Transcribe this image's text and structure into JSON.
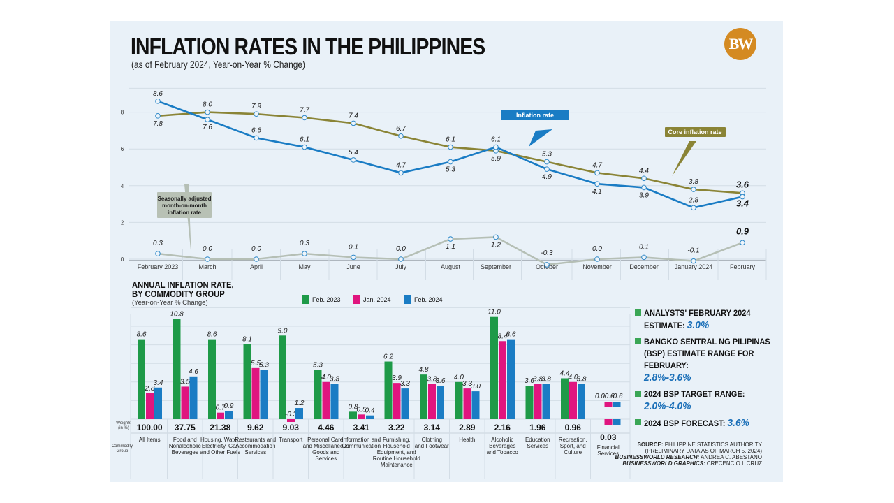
{
  "header": {
    "title": "INFLATION RATES IN THE PHILIPPINES",
    "subtitle": "(as of February 2024, Year-on-Year % Change)",
    "logo_text": "BW",
    "logo_color": "#d48a22"
  },
  "chart_data": [
    {
      "type": "line",
      "title": "INFLATION RATES IN THE PHILIPPINES",
      "subtitle": "(as of February 2024, Year-on-Year % Change)",
      "x": [
        "February 2023",
        "March",
        "April",
        "May",
        "June",
        "July",
        "August",
        "September",
        "October",
        "November",
        "December",
        "January 2024",
        "February"
      ],
      "yticks": [
        "0",
        "2",
        "4",
        "6",
        "8"
      ],
      "ylim": [
        0,
        9
      ],
      "grid": true,
      "series": [
        {
          "name": "Inflation rate",
          "color": "#1a7cc4",
          "values": [
            8.6,
            7.6,
            6.6,
            6.1,
            5.4,
            4.7,
            5.3,
            6.1,
            4.9,
            4.1,
            3.9,
            2.8,
            3.4
          ]
        },
        {
          "name": "Core inflation rate",
          "color": "#8a8436",
          "values": [
            7.8,
            8.0,
            7.9,
            7.7,
            7.4,
            6.7,
            6.1,
            5.9,
            5.3,
            4.7,
            4.4,
            3.8,
            3.6
          ]
        },
        {
          "name": "Seasonally adjusted month-on-month inflation rate",
          "color": "#b5bfb5",
          "values": [
            0.3,
            0.0,
            0.0,
            0.3,
            0.1,
            0.0,
            1.1,
            1.2,
            -0.3,
            0.0,
            0.1,
            -0.1,
            0.9
          ]
        }
      ],
      "callouts": {
        "inflation": "Inflation rate",
        "core": "Core inflation rate",
        "mom": [
          "Seasonally adjusted",
          "month-on-month",
          "inflation rate"
        ]
      }
    },
    {
      "type": "bar",
      "title": [
        "ANNUAL INFLATION RATE,",
        "BY COMMODITY GROUP"
      ],
      "subtitle": "(Year-on-Year % Change)",
      "legend": [
        "Feb. 2023",
        "Jan. 2024",
        "Feb. 2024"
      ],
      "legend_placement": "top",
      "colors": [
        "#1e9a48",
        "#e0157f",
        "#1a7cc4"
      ],
      "row_labels": {
        "weights": "Weights (in %)",
        "group": "Commodity Group"
      },
      "categories": [
        {
          "name": [
            "All Items"
          ],
          "weight": "100.00"
        },
        {
          "name": [
            "Food and",
            "Nonalcoholic",
            "Beverages"
          ],
          "weight": "37.75"
        },
        {
          "name": [
            "Housing, Water,",
            "Electricity, Gas",
            "and Other Fuels"
          ],
          "weight": "21.38"
        },
        {
          "name": [
            "Restaurants and",
            "Accommodation",
            "Services"
          ],
          "weight": "9.62"
        },
        {
          "name": [
            "Transport"
          ],
          "weight": "9.03"
        },
        {
          "name": [
            "Personal Care,",
            "and Miscellaneous",
            "Goods and",
            "Services"
          ],
          "weight": "4.46"
        },
        {
          "name": [
            "Information and",
            "Communication"
          ],
          "weight": "3.41"
        },
        {
          "name": [
            "Furnishing,",
            "Household",
            "Equipment, and",
            "Routine Household",
            "Maintenance"
          ],
          "weight": "3.22"
        },
        {
          "name": [
            "Clothing",
            "and Footwear"
          ],
          "weight": "3.14"
        },
        {
          "name": [
            "Health"
          ],
          "weight": "2.89"
        },
        {
          "name": [
            "Alcoholic",
            "Beverages",
            "and Tobacco"
          ],
          "weight": "2.16"
        },
        {
          "name": [
            "Education",
            "Services"
          ],
          "weight": "1.96"
        },
        {
          "name": [
            "Recreation,",
            "Sport, and",
            "Culture"
          ],
          "weight": "0.96"
        },
        {
          "name": [
            "Financial",
            "Services"
          ],
          "weight": "0.03"
        }
      ],
      "series": [
        {
          "name": "Feb. 2023",
          "values": [
            8.6,
            10.8,
            8.6,
            8.1,
            9.0,
            5.3,
            0.8,
            6.2,
            4.8,
            4.0,
            11.0,
            3.6,
            4.4,
            0.0
          ]
        },
        {
          "name": "Jan. 2024",
          "values": [
            2.8,
            3.5,
            0.7,
            5.5,
            -0.3,
            4.0,
            0.5,
            3.9,
            3.8,
            3.3,
            8.4,
            3.8,
            4.0,
            -0.6
          ]
        },
        {
          "name": "Feb. 2024",
          "values": [
            3.4,
            4.6,
            0.9,
            5.3,
            1.2,
            3.8,
            0.4,
            3.3,
            3.6,
            3.0,
            8.6,
            3.8,
            3.8,
            -0.6
          ]
        }
      ]
    }
  ],
  "side_panel": {
    "items": [
      {
        "label": "ANALYSTS' FEBRUARY 2024 ESTIMATE:",
        "value": "3.0%"
      },
      {
        "label": "BANGKO SENTRAL NG PILIPINAS (BSP) ESTIMATE RANGE FOR FEBRUARY:",
        "value": "2.8%-3.6%"
      },
      {
        "label": "2024 BSP TARGET RANGE:",
        "value": "2.0%-4.0%"
      },
      {
        "label": "2024 BSP FORECAST:",
        "value": "3.6%"
      }
    ]
  },
  "source": {
    "source_label": "SOURCE:",
    "source_text": "PHILIPPINE STATISTICS AUTHORITY",
    "source_note": "(PRELIMINARY DATA AS OF MARCH 5, 2024)",
    "research_label": "BUSINESSWORLD RESEARCH:",
    "research_text": "ANDREA C. ABESTANO",
    "graphics_label": "BUSINESSWORLD GRAPHICS:",
    "graphics_text": "CRECENCIO I. CRUZ"
  }
}
